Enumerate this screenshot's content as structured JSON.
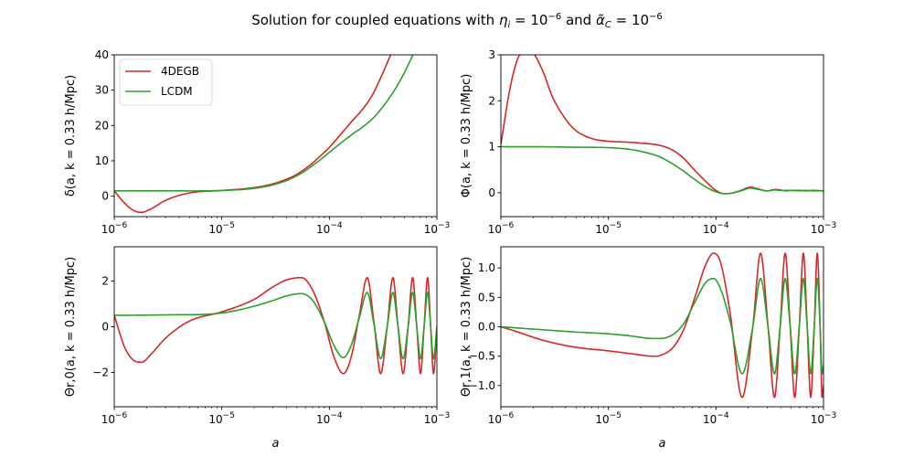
{
  "figure": {
    "title_prefix": "Solution for coupled equations with ",
    "title_eta": "η",
    "title_eta_sub": "i",
    "title_mid": " = 10",
    "title_exp1": "−6",
    "title_and": " and ",
    "title_alpha": "α̃",
    "title_alpha_sub": "C",
    "title_mid2": " = 10",
    "title_exp2": "−6"
  },
  "colors": {
    "4DEGB": "#d62728",
    "LCDM": "#2ca02c",
    "axes": "#000000",
    "background": "#ffffff"
  },
  "legend": {
    "entries": [
      "4DEGB",
      "LCDM"
    ],
    "location": "upper-left",
    "panel": 0
  },
  "chart_data": [
    {
      "type": "line",
      "name": "delta",
      "xscale": "log",
      "xlim": [
        1e-06,
        0.001
      ],
      "ylim": [
        -5.8,
        40
      ],
      "xticks": [
        1e-06,
        1e-05,
        0.0001,
        0.001
      ],
      "xticklabels": [
        [
          "10",
          "−6"
        ],
        [
          "10",
          "−5"
        ],
        [
          "10",
          "−4"
        ],
        [
          "10",
          "−3"
        ]
      ],
      "yticks": [
        0,
        10,
        20,
        30,
        40
      ],
      "yticklabels": [
        "0",
        "10",
        "20",
        "30",
        "40"
      ],
      "ylabel": "δ(a, k =  0.33 h/Mpc)",
      "xlabel": "",
      "series": [
        {
          "name": "4DEGB",
          "x": [
            1e-06,
            1.25e-06,
            1.5e-06,
            1.78e-06,
            2.2e-06,
            3e-06,
            5e-06,
            1e-05,
            2e-05,
            3e-05,
            4e-05,
            5e-05,
            6e-05,
            7e-05,
            8e-05,
            0.0001,
            0.00013,
            0.00016,
            0.0002,
            0.00025,
            0.0003,
            0.00036,
            0.0004
          ],
          "y": [
            1.5,
            -2.0,
            -4.0,
            -4.6,
            -3.6,
            -1.2,
            0.9,
            1.6,
            2.4,
            3.5,
            4.8,
            6.2,
            7.8,
            9.4,
            11.0,
            13.8,
            17.8,
            21.0,
            24.3,
            28.5,
            33.5,
            39.0,
            42.0
          ]
        },
        {
          "name": "LCDM",
          "x": [
            1e-06,
            3e-06,
            1e-05,
            2e-05,
            3e-05,
            4e-05,
            5e-05,
            6e-05,
            7e-05,
            8e-05,
            0.0001,
            0.00013,
            0.00016,
            0.0002,
            0.00025,
            0.0003,
            0.0004,
            0.0005,
            0.0006,
            0.00065
          ],
          "y": [
            1.5,
            1.5,
            1.6,
            2.2,
            3.2,
            4.4,
            5.8,
            7.2,
            8.7,
            10.0,
            12.4,
            15.2,
            17.3,
            19.4,
            21.8,
            24.5,
            29.8,
            35.0,
            40.0,
            42.0
          ]
        }
      ]
    },
    {
      "type": "line",
      "name": "Phi",
      "xscale": "log",
      "xlim": [
        1e-06,
        0.001
      ],
      "ylim": [
        -0.52,
        3
      ],
      "xticks": [
        1e-06,
        1e-05,
        0.0001,
        0.001
      ],
      "xticklabels": [
        [
          "10",
          "−6"
        ],
        [
          "10",
          "−5"
        ],
        [
          "10",
          "−4"
        ],
        [
          "10",
          "−3"
        ]
      ],
      "yticks": [
        0,
        1,
        2,
        3
      ],
      "yticklabels": [
        "0",
        "1",
        "2",
        "3"
      ],
      "ylabel": "Φ(a, k =  0.33 h/Mpc)",
      "xlabel": "",
      "series": [
        {
          "name": "4DEGB",
          "x": [
            1e-06,
            1.2e-06,
            1.4e-06,
            1.6e-06,
            1.78e-06,
            2e-06,
            2.5e-06,
            3e-06,
            4e-06,
            5e-06,
            7e-06,
            1e-05,
            1.5e-05,
            2e-05,
            3e-05,
            4e-05,
            5e-05,
            6e-05,
            8e-05,
            0.0001,
            0.00012,
            0.00014,
            0.00017,
            0.00021,
            0.00025,
            0.0003,
            0.00035,
            0.0004,
            0.00045,
            0.0005,
            0.0006,
            0.0007,
            0.0008,
            0.001
          ],
          "y": [
            1.05,
            2.2,
            2.85,
            3.1,
            3.15,
            3.05,
            2.6,
            2.1,
            1.6,
            1.35,
            1.18,
            1.12,
            1.1,
            1.08,
            1.03,
            0.92,
            0.75,
            0.55,
            0.25,
            0.05,
            -0.02,
            -0.01,
            0.05,
            0.12,
            0.08,
            0.04,
            0.07,
            0.06,
            0.04,
            0.05,
            0.05,
            0.04,
            0.05,
            0.04
          ]
        },
        {
          "name": "LCDM",
          "x": [
            1e-06,
            2e-06,
            5e-06,
            1e-05,
            1.5e-05,
            2e-05,
            3e-05,
            4e-05,
            5e-05,
            6e-05,
            8e-05,
            0.0001,
            0.00012,
            0.00014,
            0.00017,
            0.00021,
            0.00025,
            0.0003,
            0.00035,
            0.0004,
            0.0005,
            0.0006,
            0.0007,
            0.0008,
            0.001
          ],
          "y": [
            1.0,
            1.0,
            0.99,
            0.98,
            0.95,
            0.9,
            0.78,
            0.62,
            0.47,
            0.33,
            0.13,
            0.02,
            -0.02,
            -0.01,
            0.04,
            0.1,
            0.07,
            0.04,
            0.06,
            0.05,
            0.05,
            0.04,
            0.05,
            0.04,
            0.04
          ]
        }
      ]
    },
    {
      "type": "line",
      "name": "Theta_r0",
      "xscale": "log",
      "xlim": [
        1e-06,
        0.001
      ],
      "ylim": [
        -3.5,
        3.5
      ],
      "xticks": [
        1e-06,
        1e-05,
        0.0001,
        0.001
      ],
      "xticklabels": [
        [
          "10",
          "−6"
        ],
        [
          "10",
          "−5"
        ],
        [
          "10",
          "−4"
        ],
        [
          "10",
          "−3"
        ]
      ],
      "yticks": [
        -2,
        0,
        2
      ],
      "yticklabels": [
        "−2",
        "0",
        "2"
      ],
      "ylabel": "Θr,0(a, k =  0.33 h/Mpc)",
      "xlabel": "a",
      "series": [
        {
          "name": "4DEGB",
          "x": [
            1e-06,
            1.25e-06,
            1.5e-06,
            1.8e-06,
            2.2e-06,
            3e-06,
            5e-06,
            1e-05,
            2e-05,
            3e-05,
            4e-05,
            5.5e-05,
            7e-05,
            9e-05,
            0.00011,
            0.000135,
            0.00016,
            0.00019,
            0.000225,
            0.00026,
            0.0003,
            0.000345,
            0.00039,
            0.000435,
            0.000485,
            0.00054,
            0.000595,
            0.00065,
            0.000705,
            0.00076,
            0.00082,
            0.000875,
            0.00093,
            0.001
          ],
          "y": [
            0.5,
            -0.9,
            -1.45,
            -1.55,
            -1.2,
            -0.5,
            0.25,
            0.65,
            1.2,
            1.75,
            2.05,
            2.15,
            1.6,
            0.2,
            -1.3,
            -2.05,
            -1.3,
            0.5,
            2.15,
            0.2,
            -2.05,
            0.0,
            2.15,
            0.0,
            -2.05,
            0.0,
            2.15,
            0.0,
            -2.05,
            0.0,
            2.15,
            0.0,
            -2.05,
            0.0
          ]
        },
        {
          "name": "LCDM",
          "x": [
            1e-06,
            3e-06,
            1e-05,
            2e-05,
            3e-05,
            4e-05,
            5.5e-05,
            7e-05,
            9e-05,
            0.00011,
            0.000135,
            0.00016,
            0.00019,
            0.000225,
            0.00026,
            0.0003,
            0.000345,
            0.00039,
            0.000435,
            0.000485,
            0.00054,
            0.000595,
            0.00065,
            0.000705,
            0.00076,
            0.00082,
            0.000875,
            0.00093,
            0.001
          ],
          "y": [
            0.5,
            0.52,
            0.6,
            0.9,
            1.15,
            1.35,
            1.45,
            1.15,
            0.2,
            -0.8,
            -1.35,
            -0.8,
            0.4,
            1.5,
            0.1,
            -1.4,
            0.0,
            1.5,
            0.0,
            -1.4,
            0.0,
            1.5,
            0.0,
            -1.4,
            0.0,
            1.5,
            0.0,
            -1.4,
            0.0
          ]
        }
      ]
    },
    {
      "type": "line",
      "name": "Theta_r1",
      "xscale": "log",
      "xlim": [
        1e-06,
        0.001
      ],
      "ylim": [
        -1.36,
        1.36
      ],
      "xticks": [
        1e-06,
        1e-05,
        0.0001,
        0.001
      ],
      "xticklabels": [
        [
          "10",
          "−6"
        ],
        [
          "10",
          "−5"
        ],
        [
          "10",
          "−4"
        ],
        [
          "10",
          "−3"
        ]
      ],
      "yticks": [
        -1.0,
        -0.5,
        0.0,
        0.5,
        1.0
      ],
      "yticklabels": [
        "−1.0",
        "−0.5",
        "0.0",
        "0.5",
        "1.0"
      ],
      "ylabel": "Θr,1(a, k =  0.33 h/Mpc)",
      "xlabel": "a",
      "series": [
        {
          "name": "4DEGB",
          "x": [
            1e-06,
            1.5e-06,
            2e-06,
            3e-06,
            5e-06,
            1e-05,
            1.5e-05,
            2e-05,
            2.5e-05,
            3e-05,
            4e-05,
            5e-05,
            6.5e-05,
            8e-05,
            9.5e-05,
            0.00011,
            0.000135,
            0.000175,
            0.00022,
            0.00026,
            0.000305,
            0.00035,
            0.000395,
            0.00044,
            0.00049,
            0.00054,
            0.000595,
            0.00065,
            0.000705,
            0.00076,
            0.00082,
            0.000875,
            0.00093,
            0.00097,
            0.001
          ],
          "y": [
            0.0,
            -0.1,
            -0.18,
            -0.27,
            -0.35,
            -0.41,
            -0.45,
            -0.48,
            -0.5,
            -0.49,
            -0.35,
            -0.05,
            0.55,
            1.05,
            1.25,
            1.1,
            0.25,
            -1.2,
            0.0,
            1.25,
            0.0,
            -1.2,
            0.0,
            1.25,
            0.0,
            -1.2,
            0.0,
            1.25,
            0.0,
            -1.2,
            0.0,
            1.25,
            0.0,
            -1.2,
            -1.0
          ]
        },
        {
          "name": "LCDM",
          "x": [
            1e-06,
            2e-06,
            5e-06,
            1e-05,
            1.5e-05,
            2e-05,
            2.5e-05,
            3e-05,
            4e-05,
            5e-05,
            6.5e-05,
            8e-05,
            9.5e-05,
            0.00011,
            0.000135,
            0.000175,
            0.00022,
            0.00026,
            0.000305,
            0.00035,
            0.000395,
            0.00044,
            0.00049,
            0.00054,
            0.000595,
            0.00065,
            0.000705,
            0.00076,
            0.00082,
            0.000875,
            0.00093,
            0.00097,
            0.001
          ],
          "y": [
            0.0,
            -0.04,
            -0.09,
            -0.12,
            -0.15,
            -0.18,
            -0.2,
            -0.2,
            -0.13,
            0.05,
            0.45,
            0.75,
            0.82,
            0.65,
            0.1,
            -0.8,
            0.0,
            0.82,
            0.0,
            -0.8,
            0.0,
            0.82,
            0.0,
            -0.8,
            0.0,
            0.82,
            0.0,
            -0.8,
            0.0,
            0.82,
            0.0,
            -0.8,
            -0.65
          ]
        }
      ]
    }
  ]
}
